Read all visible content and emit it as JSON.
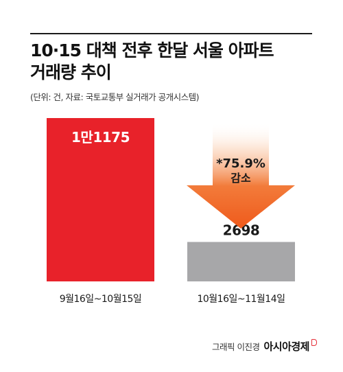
{
  "header": {
    "title_line1": "10·15 대책 전후 한달 서울 아파트",
    "title_line2": "거래량 추이",
    "source": "(단위: 건, 자료: 국토교통부 실거래가 공개시스템)"
  },
  "chart_data": {
    "type": "bar",
    "categories": [
      "9월16일~10월15일",
      "10월16일~11월14일"
    ],
    "values": [
      11175,
      2698
    ],
    "value_labels": [
      "1만1175",
      "2698"
    ],
    "bar_colors": [
      "#e8222a",
      "#a7a7a9"
    ],
    "annotation": {
      "line1": "*75.9%",
      "line2": "감소",
      "arrow_color": "#ef5a1c"
    },
    "ylim": [
      0,
      11175
    ],
    "grid": false
  },
  "credit": {
    "byline": "그래픽 이진경",
    "brand": "아시아경제"
  }
}
